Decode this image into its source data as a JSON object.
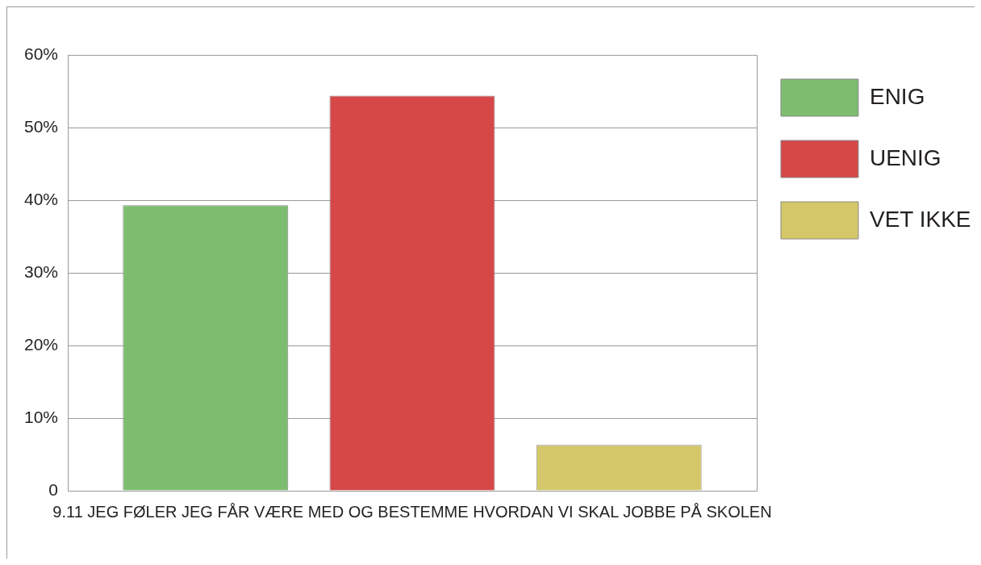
{
  "chart_data": {
    "type": "bar",
    "categories": [
      "9.11 JEG FØLER JEG FÅR VÆRE MED OG BESTEMME HVORDAN VI SKAL JOBBE PÅ SKOLEN"
    ],
    "series": [
      {
        "name": "ENIG",
        "color": "#7dbd6f",
        "values": [
          39.3
        ]
      },
      {
        "name": "UENIG",
        "color": "#d64848",
        "values": [
          54.4
        ]
      },
      {
        "name": "VET IKKE",
        "color": "#d3c76a",
        "values": [
          6.3
        ]
      }
    ],
    "ylim": [
      0,
      60
    ],
    "yticks": [
      {
        "value": 0,
        "label": "0"
      },
      {
        "value": 10,
        "label": "10%"
      },
      {
        "value": 20,
        "label": "20%"
      },
      {
        "value": 30,
        "label": "30%"
      },
      {
        "value": 40,
        "label": "40%"
      },
      {
        "value": 50,
        "label": "50%"
      },
      {
        "value": 60,
        "label": "60%"
      }
    ],
    "grid": "y",
    "legend": "top right"
  }
}
